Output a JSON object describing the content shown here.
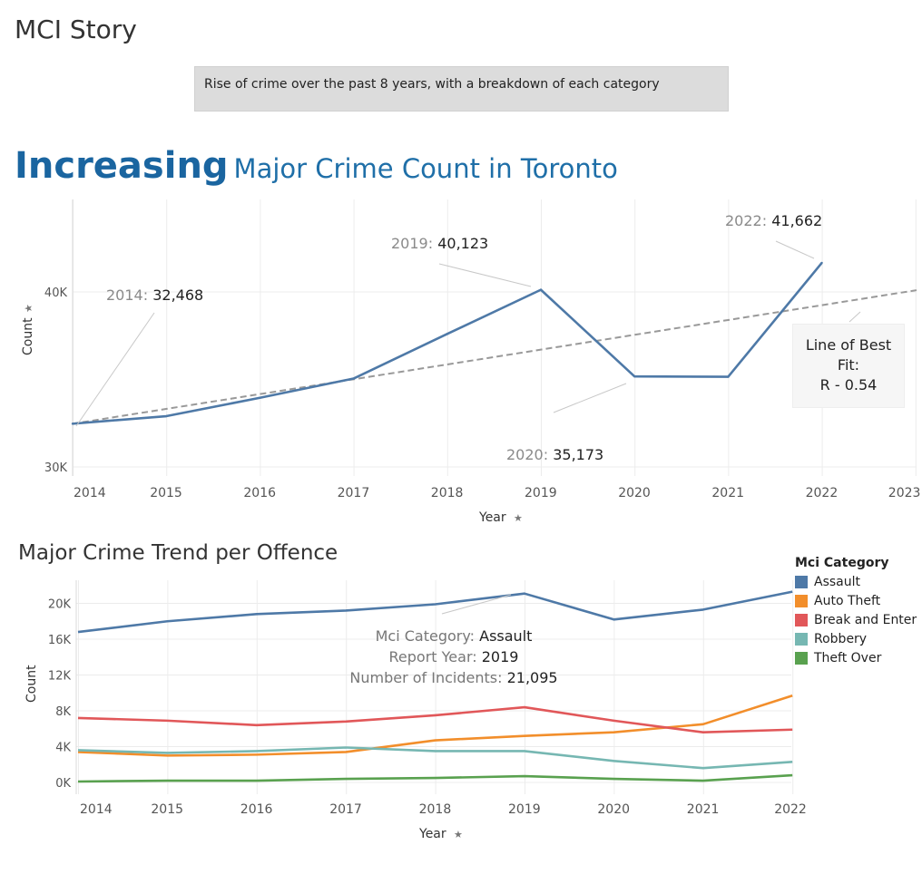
{
  "story_title": "MCI Story",
  "caption": "Rise of crime over the past 8 years, with a breakdown of each category",
  "headline": {
    "emphasis": "Increasing",
    "rest": "Major Crime Count in Toronto"
  },
  "best_fit_box": {
    "line1": "Line of Best",
    "line2": "Fit:",
    "line3": "R - 0.54"
  },
  "chart_data": [
    {
      "type": "line",
      "x": [
        2014,
        2015,
        2016,
        2017,
        2018,
        2019,
        2020,
        2021,
        2022
      ],
      "series": [
        {
          "values": [
            32468,
            32900,
            33950,
            35050,
            37600,
            40123,
            35173,
            35150,
            41662
          ]
        }
      ],
      "trend_line": {
        "x": [
          2014,
          2023
        ],
        "y": [
          32468,
          40100
        ],
        "style": "dashed"
      },
      "xlabel": "Year",
      "ylabel": "Count",
      "x_ticks": [
        2014,
        2015,
        2016,
        2017,
        2018,
        2019,
        2020,
        2021,
        2022,
        2023
      ],
      "y_ticks": [
        {
          "value": 30000,
          "label": "30K"
        },
        {
          "value": 40000,
          "label": "40K"
        }
      ],
      "xlim": [
        2014,
        2023
      ],
      "ylim": [
        29500,
        45000
      ],
      "annotations": [
        {
          "x": 2014,
          "y": 32468,
          "prefix": "2014: ",
          "value": "32,468"
        },
        {
          "x": 2019,
          "y": 40123,
          "prefix": "2019: ",
          "value": "40,123"
        },
        {
          "x": 2020,
          "y": 35173,
          "prefix": "2020: ",
          "value": "35,173"
        },
        {
          "x": 2022,
          "y": 41662,
          "prefix": "2022: ",
          "value": "41,662"
        }
      ],
      "grid": true,
      "colors": {
        "line": "#4e79a7",
        "trend": "#999999"
      }
    },
    {
      "type": "line",
      "title": "Major Crime Trend per Offence",
      "x": [
        2014,
        2015,
        2016,
        2017,
        2018,
        2019,
        2020,
        2021,
        2022
      ],
      "series": [
        {
          "name": "Assault",
          "color": "#4e79a7",
          "values": [
            16800,
            18000,
            18800,
            19200,
            19900,
            21095,
            18200,
            19300,
            21300
          ]
        },
        {
          "name": "Auto Theft",
          "color": "#f28e2b",
          "values": [
            3400,
            3000,
            3100,
            3400,
            4700,
            5200,
            5600,
            6500,
            9700
          ]
        },
        {
          "name": "Break and Enter",
          "color": "#e15759",
          "values": [
            7200,
            6900,
            6400,
            6800,
            7500,
            8400,
            6900,
            5600,
            5900
          ]
        },
        {
          "name": "Robbery",
          "color": "#76b7b2",
          "values": [
            3600,
            3300,
            3500,
            3900,
            3500,
            3500,
            2400,
            1600,
            2300
          ]
        },
        {
          "name": "Theft Over",
          "color": "#59a14f",
          "values": [
            100,
            200,
            200,
            400,
            500,
            700,
            400,
            200,
            800
          ]
        }
      ],
      "xlabel": "Year",
      "ylabel": "Count",
      "x_ticks": [
        2014,
        2015,
        2016,
        2017,
        2018,
        2019,
        2020,
        2021,
        2022
      ],
      "y_ticks": [
        {
          "value": 0,
          "label": "0K"
        },
        {
          "value": 4000,
          "label": "4K"
        },
        {
          "value": 8000,
          "label": "8K"
        },
        {
          "value": 12000,
          "label": "12K"
        },
        {
          "value": 16000,
          "label": "16K"
        },
        {
          "value": 20000,
          "label": "20K"
        }
      ],
      "xlim": [
        2014,
        2022
      ],
      "ylim": [
        -1000,
        22500
      ],
      "legend": {
        "title": "Mci Category",
        "position": "right"
      },
      "tooltip": {
        "x": 2019,
        "rows": [
          {
            "label": "Mci Category: ",
            "value": "Assault"
          },
          {
            "label": "Report Year: ",
            "value": "2019"
          },
          {
            "label": "Number of Incidents: ",
            "value": "21,095"
          }
        ]
      },
      "grid": true
    }
  ]
}
